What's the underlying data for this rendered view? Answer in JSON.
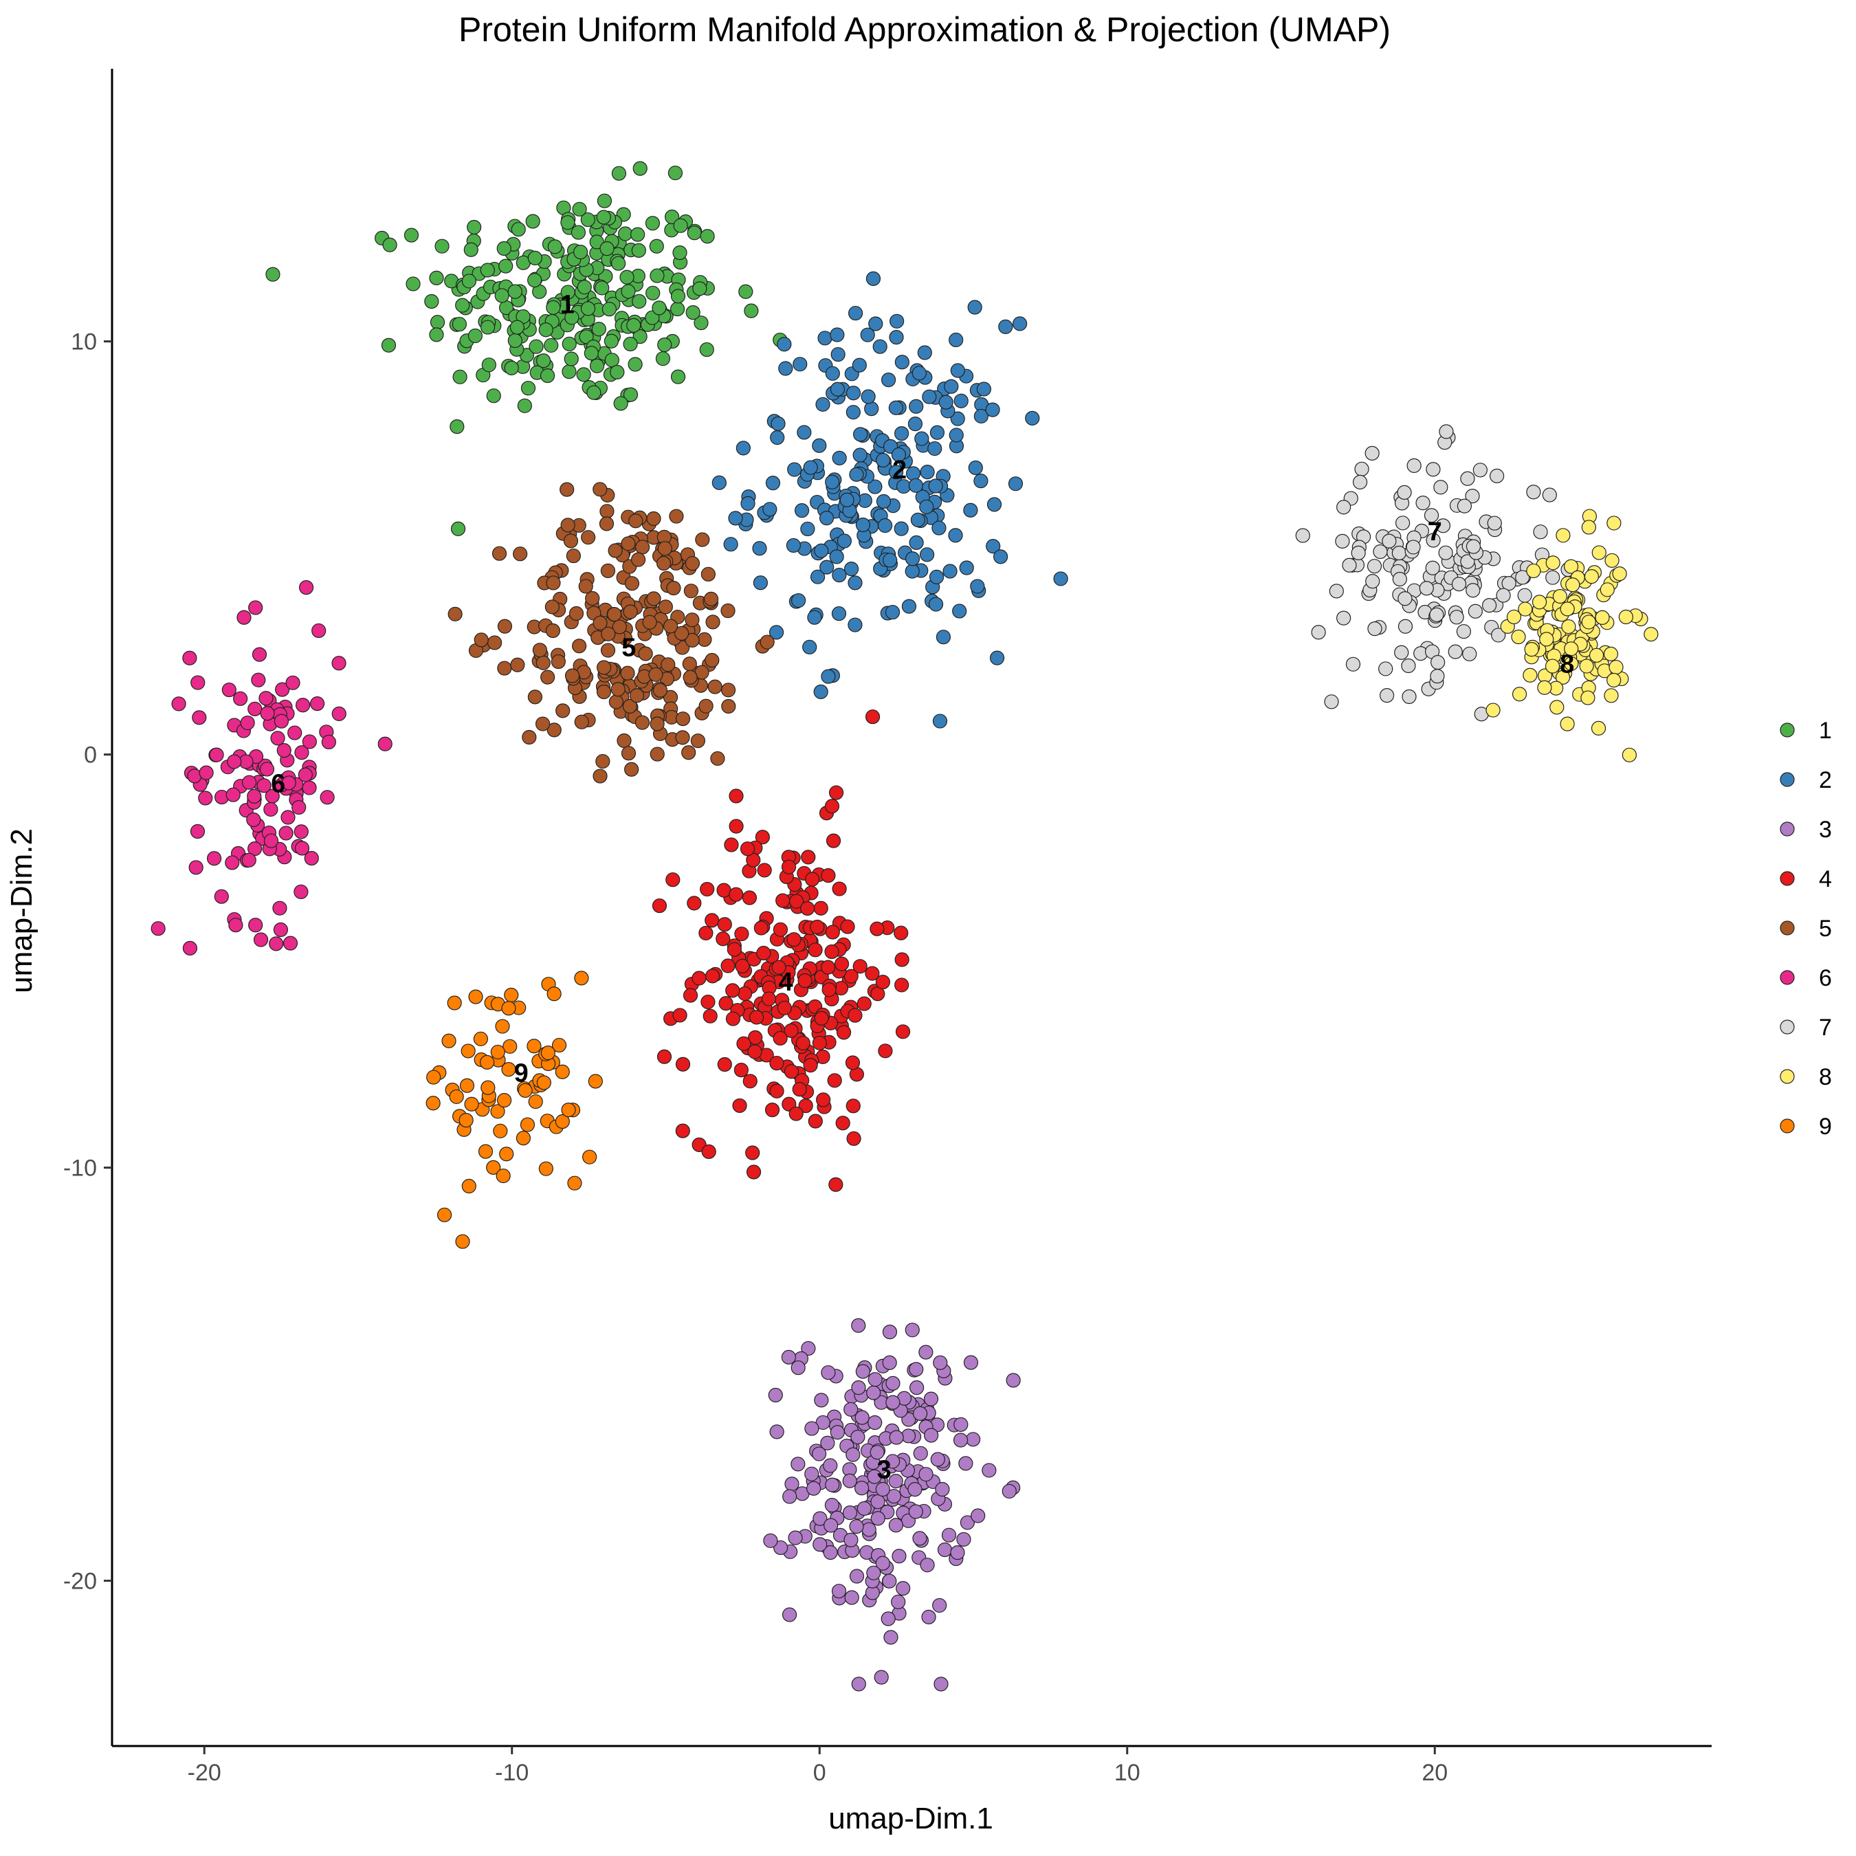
{
  "chart_data": {
    "type": "scatter",
    "title": "Protein Uniform Manifold Approximation & Projection (UMAP)",
    "xlabel": "umap-Dim.1",
    "ylabel": "umap-Dim.2",
    "xlim": [
      -23,
      29
    ],
    "ylim": [
      -24,
      16.6
    ],
    "x_ticks": [
      -20,
      -10,
      0,
      10,
      20
    ],
    "x_tick_labels": [
      "-20",
      "-10",
      "0",
      "10",
      "20"
    ],
    "y_ticks": [
      -20,
      -10,
      0,
      10
    ],
    "y_tick_labels": [
      "-20",
      "-10",
      "0",
      "10"
    ],
    "grid": false,
    "legend_position": "right",
    "legend_entries": [
      "1",
      "2",
      "3",
      "4",
      "5",
      "6",
      "7",
      "8",
      "9"
    ],
    "point_summary": "Several hundred points per cluster; each cluster described by its visual center and spread in data units.",
    "series": [
      {
        "name": "1",
        "color": "#4DAF4A",
        "center_x": -8,
        "center_y": 11,
        "spread_x": 4.4,
        "spread_y": 2.4,
        "n": 260
      },
      {
        "name": "2",
        "color": "#377EB8",
        "center_x": 2,
        "center_y": 6.5,
        "spread_x": 3.8,
        "spread_y": 3.6,
        "n": 230
      },
      {
        "name": "3",
        "color": "#B07CC6",
        "center_x": 2,
        "center_y": -17.5,
        "spread_x": 2.6,
        "spread_y": 3.2,
        "n": 220
      },
      {
        "name": "4",
        "color": "#E41A1C",
        "center_x": -1,
        "center_y": -5.5,
        "spread_x": 3.0,
        "spread_y": 3.4,
        "n": 230
      },
      {
        "name": "5",
        "color": "#A65628",
        "center_x": -6,
        "center_y": 3,
        "spread_x": 3.4,
        "spread_y": 3.0,
        "n": 230
      },
      {
        "name": "6",
        "color": "#E7298A",
        "center_x": -18,
        "center_y": -0.5,
        "spread_x": 2.2,
        "spread_y": 3.2,
        "n": 120
      },
      {
        "name": "7",
        "color": "#D9D9D9",
        "center_x": 20,
        "center_y": 4.5,
        "spread_x": 3.5,
        "spread_y": 2.4,
        "n": 150
      },
      {
        "name": "8",
        "color": "#FFED6F",
        "center_x": 24.5,
        "center_y": 3,
        "spread_x": 1.6,
        "spread_y": 1.9,
        "n": 130
      },
      {
        "name": "9",
        "color": "#FF7F00",
        "center_x": -10,
        "center_y": -8,
        "spread_x": 2.5,
        "spread_y": 2.6,
        "n": 70
      }
    ],
    "annotations": [
      {
        "text": "1",
        "x": -8.2,
        "y": 10.9
      },
      {
        "text": "2",
        "x": 2.6,
        "y": 6.9
      },
      {
        "text": "3",
        "x": 2.1,
        "y": -17.3
      },
      {
        "text": "4",
        "x": -1.1,
        "y": -5.5
      },
      {
        "text": "5",
        "x": -6.2,
        "y": 2.6
      },
      {
        "text": "6",
        "x": -17.6,
        "y": -0.7
      },
      {
        "text": "7",
        "x": 20.0,
        "y": 5.4
      },
      {
        "text": "8",
        "x": 24.3,
        "y": 2.2
      },
      {
        "text": "9",
        "x": -9.7,
        "y": -7.7
      }
    ]
  }
}
